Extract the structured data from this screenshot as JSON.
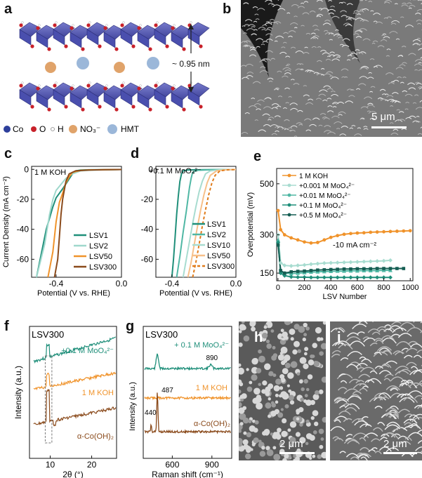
{
  "panels": {
    "a": "a",
    "b": "b",
    "c": "c",
    "d": "d",
    "e": "e",
    "f": "f",
    "g": "g",
    "h": "h",
    "i": "i"
  },
  "panel_a": {
    "spacing_label": "~ 0.95 nm",
    "legend": [
      {
        "label": "Co",
        "color": "#2d3f9b"
      },
      {
        "label": "O",
        "color": "#c8212a"
      },
      {
        "label": "H",
        "color": "#d9d9d9"
      },
      {
        "label": "NO₃⁻",
        "color": "#e0a36a"
      },
      {
        "label": "HMT",
        "color": "#9bb7d9"
      }
    ]
  },
  "panel_b": {
    "scale": "5 μm"
  },
  "panel_h": {
    "scale": "2 μm"
  },
  "panel_i": {
    "scale": "2 μm"
  },
  "chart_data": [
    {
      "id": "c",
      "type": "line",
      "condition": "1 M KOH",
      "ylabel": "Current Density (mA cm⁻²)",
      "xlabel": "Potential (V vs. RHE)",
      "xlim": [
        -0.55,
        0.0
      ],
      "ylim": [
        -72,
        2
      ],
      "xticks": [
        "-0.4",
        "0.0"
      ],
      "yticks": [
        "0",
        "-20",
        "-40",
        "-60"
      ],
      "series": [
        {
          "name": "LSV1",
          "color": "#1f8f7a",
          "dash": false,
          "x": [
            -0.52,
            -0.46,
            -0.42,
            -0.4,
            -0.36,
            -0.33,
            -0.3,
            -0.28,
            -0.25,
            -0.2,
            -0.1,
            0.0
          ],
          "y": [
            -72,
            -40,
            -25,
            -19,
            -13,
            -8,
            -3,
            -1,
            -0.5,
            -0.3,
            -0.2,
            -0.1
          ]
        },
        {
          "name": "LSV2",
          "color": "#9fd8cc",
          "dash": false,
          "x": [
            -0.52,
            -0.47,
            -0.44,
            -0.42,
            -0.4,
            -0.37,
            -0.34,
            -0.3,
            -0.25,
            -0.2,
            -0.1,
            0.0
          ],
          "y": [
            -72,
            -50,
            -30,
            -20,
            -14,
            -10,
            -6,
            -3,
            -1,
            -0.6,
            -0.3,
            -0.1
          ]
        },
        {
          "name": "LSV50",
          "color": "#f0932b",
          "dash": false,
          "x": [
            -0.45,
            -0.42,
            -0.4,
            -0.38,
            -0.36,
            -0.34,
            -0.32,
            -0.3,
            -0.25,
            -0.2,
            -0.1,
            0.0
          ],
          "y": [
            -72,
            -55,
            -35,
            -22,
            -16,
            -9,
            -5,
            -2,
            -0.7,
            -0.4,
            -0.2,
            -0.1
          ]
        },
        {
          "name": "LSV300",
          "color": "#8a4a1b",
          "dash": false,
          "x": [
            -0.41,
            -0.39,
            -0.38,
            -0.37,
            -0.36,
            -0.35,
            -0.34,
            -0.32,
            -0.28,
            -0.2,
            -0.1,
            0.0
          ],
          "y": [
            -72,
            -60,
            -45,
            -30,
            -20,
            -14,
            -8,
            -3,
            -1,
            -0.5,
            -0.2,
            -0.1
          ]
        }
      ]
    },
    {
      "id": "d",
      "type": "line",
      "condition": "+0.1 M MoO₄²⁻",
      "xlabel": "Potential (V vs. RHE)",
      "xlim": [
        -0.5,
        0.0
      ],
      "ylim": [
        -72,
        2
      ],
      "xticks": [
        "-0.4",
        "0.0"
      ],
      "yticks": [
        "0",
        "-20",
        "-40",
        "-60"
      ],
      "series": [
        {
          "name": "LSV1",
          "color": "#1f8f7a",
          "dash": false,
          "x": [
            -0.4,
            -0.39,
            -0.38,
            -0.37,
            -0.36,
            -0.35,
            -0.34,
            -0.33,
            -0.3,
            -0.2,
            0.0
          ],
          "y": [
            -72,
            -60,
            -45,
            -30,
            -18,
            -8,
            -3,
            -1,
            -0.4,
            -0.2,
            -0.1
          ]
        },
        {
          "name": "LSV2",
          "color": "#4fb7a4",
          "dash": false,
          "x": [
            -0.37,
            -0.35,
            -0.33,
            -0.31,
            -0.3,
            -0.29,
            -0.28,
            -0.27,
            -0.24,
            -0.15,
            0.0
          ],
          "y": [
            -72,
            -58,
            -42,
            -28,
            -20,
            -12,
            -6,
            -2,
            -0.6,
            -0.2,
            -0.1
          ]
        },
        {
          "name": "LSV10",
          "color": "#a8dcd0",
          "dash": false,
          "x": [
            -0.33,
            -0.31,
            -0.29,
            -0.27,
            -0.25,
            -0.23,
            -0.21,
            -0.19,
            -0.16,
            -0.1,
            0.0
          ],
          "y": [
            -72,
            -60,
            -48,
            -36,
            -25,
            -15,
            -8,
            -3,
            -1,
            -0.3,
            -0.1
          ]
        },
        {
          "name": "LSV50",
          "color": "#f7c08a",
          "dash": false,
          "x": [
            -0.3,
            -0.28,
            -0.26,
            -0.24,
            -0.22,
            -0.2,
            -0.18,
            -0.16,
            -0.12,
            -0.06,
            0.0
          ],
          "y": [
            -72,
            -62,
            -50,
            -38,
            -27,
            -17,
            -9,
            -4,
            -1,
            -0.3,
            -0.1
          ]
        },
        {
          "name": "LSV300",
          "color": "#e07b1a",
          "dash": true,
          "x": [
            -0.27,
            -0.25,
            -0.23,
            -0.21,
            -0.19,
            -0.17,
            -0.15,
            -0.13,
            -0.1,
            -0.05,
            0.0
          ],
          "y": [
            -72,
            -62,
            -50,
            -38,
            -27,
            -17,
            -9,
            -4,
            -1,
            -0.3,
            -0.1
          ]
        }
      ]
    },
    {
      "id": "e",
      "type": "line",
      "xlabel": "LSV Number",
      "ylabel": "Overpotential (mV)",
      "annotation": "-10 mA cm⁻²",
      "xlim": [
        -10,
        1020
      ],
      "ylim": [
        120,
        560
      ],
      "xticks": [
        "0",
        "200",
        "400",
        "600",
        "800",
        "1000"
      ],
      "yticks": [
        "150",
        "300",
        "500"
      ],
      "series": [
        {
          "name": "1 M  KOH",
          "color": "#f0932b",
          "marker": "circle",
          "x": [
            1,
            20,
            50,
            100,
            150,
            200,
            250,
            300,
            350,
            400,
            450,
            500,
            550,
            600,
            650,
            700,
            750,
            800,
            850,
            900,
            950,
            1000
          ],
          "y": [
            395,
            320,
            300,
            288,
            280,
            272,
            268,
            270,
            280,
            290,
            297,
            302,
            305,
            307,
            308,
            310,
            311,
            312,
            313,
            314,
            315,
            316
          ]
        },
        {
          "name": "+0.001 M MoO₄²⁻",
          "color": "#a8dcd0",
          "marker": "diamond",
          "x": [
            1,
            20,
            50,
            100,
            150,
            200,
            250,
            300,
            350,
            400,
            450,
            500,
            550,
            600,
            650,
            700,
            750,
            800,
            850
          ],
          "y": [
            300,
            190,
            180,
            178,
            180,
            182,
            185,
            187,
            189,
            190,
            191,
            192,
            193,
            194,
            195,
            196,
            197,
            198,
            200
          ]
        },
        {
          "name": "+0.01 M MoO₄²⁻",
          "color": "#4fb7a4",
          "marker": "triangle",
          "x": [
            1,
            20,
            50,
            100,
            150,
            200,
            250,
            300,
            350,
            400,
            450,
            500,
            550,
            600,
            650,
            700,
            750,
            800,
            850
          ],
          "y": [
            280,
            155,
            150,
            148,
            150,
            152,
            154,
            155,
            156,
            157,
            158,
            158,
            159,
            159,
            160,
            160,
            160,
            161,
            161
          ]
        },
        {
          "name": "+0.1 M MoO₄²⁻",
          "color": "#1f8f7a",
          "marker": "diamond",
          "x": [
            1,
            20,
            50,
            100,
            150,
            200,
            250,
            300,
            350,
            400,
            450,
            500,
            550,
            600,
            650,
            700,
            750,
            800,
            850
          ],
          "y": [
            270,
            150,
            140,
            135,
            134,
            134,
            133,
            133,
            133,
            133,
            133,
            133,
            133,
            133,
            133,
            133,
            133,
            133,
            133
          ]
        },
        {
          "name": "+0.5 M MoO₄²⁻",
          "color": "#155e53",
          "marker": "square",
          "x": [
            1,
            20,
            50,
            100,
            150,
            200,
            250,
            300,
            350,
            400,
            450,
            500,
            550,
            600,
            650,
            700,
            750,
            800,
            850,
            900,
            950
          ],
          "y": [
            260,
            160,
            150,
            155,
            157,
            158,
            160,
            162,
            163,
            164,
            165,
            166,
            166,
            167,
            167,
            167,
            168,
            168,
            168,
            168,
            168
          ]
        }
      ]
    },
    {
      "id": "f",
      "type": "line",
      "title": "LSV300",
      "xlabel": "2θ (°)",
      "ylabel": "Intensity (a.u.)",
      "xlim": [
        5,
        26
      ],
      "xticks": [
        "10",
        "20"
      ],
      "series": [
        {
          "name": "+0.1 M MoO₄²⁻",
          "color": "#1f8f7a",
          "offset": 2.0
        },
        {
          "name": "1 M KOH",
          "color": "#f0932b",
          "offset": 1.0
        },
        {
          "name": "α-Co(OH)₂",
          "color": "#8a4a1b",
          "offset": 0.0
        }
      ]
    },
    {
      "id": "g",
      "type": "line",
      "title": "LSV300",
      "xlabel": "Raman shift (cm⁻¹)",
      "ylabel": "Intensity (a.u.)",
      "xlim": [
        380,
        1050
      ],
      "xticks": [
        "600",
        "900"
      ],
      "peaks": [
        "890",
        "487",
        "440"
      ],
      "series": [
        {
          "name": "+ 0.1 M MoO₄²⁻",
          "color": "#1f8f7a",
          "offset": 2.0
        },
        {
          "name": "1 M KOH",
          "color": "#f0932b",
          "offset": 1.0
        },
        {
          "name": "α-Co(OH)₂",
          "color": "#8a4a1b",
          "offset": 0.0
        }
      ]
    }
  ]
}
